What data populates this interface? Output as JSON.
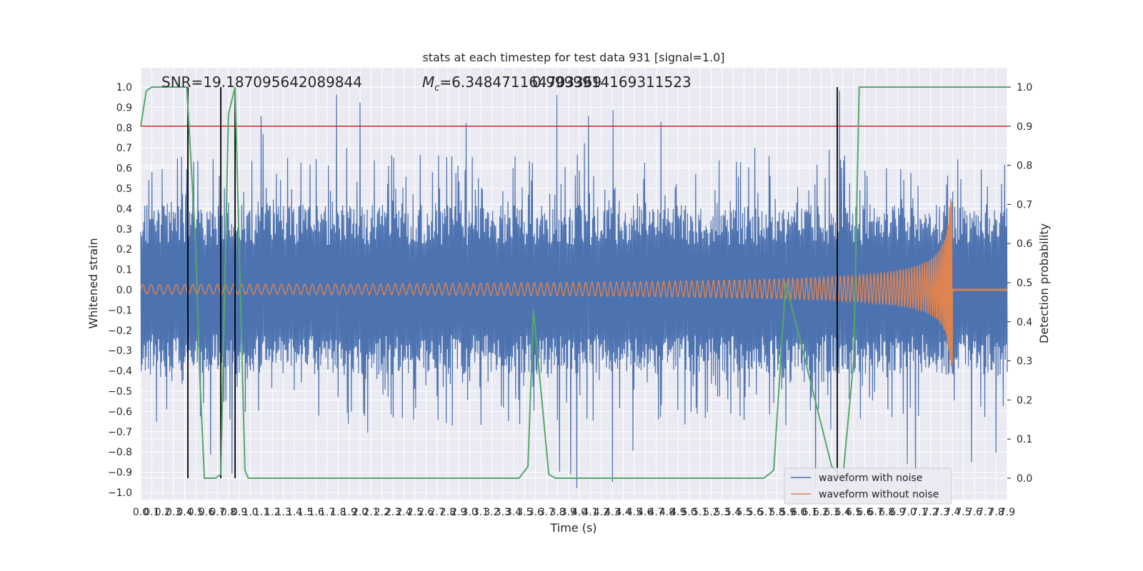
{
  "chart_data": {
    "type": "line",
    "title": "stats at each timestep for test data 931 [signal=1.0]",
    "xlabel": "Time (s)",
    "ylabel": "Whitened strain",
    "y2label": "Detection probability",
    "xlim": [
      0.0,
      7.9
    ],
    "ylim": [
      -1.0,
      1.0
    ],
    "y2lim": [
      0.0,
      1.0
    ],
    "grid": true,
    "legend_position": "bottom-right",
    "x_tick_labels": [
      "0.0",
      "0.1",
      "0.2",
      "0.3",
      "0.4",
      "0.5",
      "0.6",
      "0.7",
      "0.8",
      "0.9",
      "1.0",
      "1.1",
      "1.2",
      "1.3",
      "1.4",
      "1.5",
      "1.6",
      "1.7",
      "1.8",
      "1.9",
      "2.0",
      "2.1",
      "2.2",
      "2.3",
      "2.4",
      "2.5",
      "2.6",
      "2.7",
      "2.8",
      "2.9",
      "3.0",
      "3.1",
      "3.2",
      "3.3",
      "3.4",
      "3.5",
      "3.6",
      "3.7",
      "3.8",
      "3.9",
      "4.0",
      "4.1",
      "4.2",
      "4.3",
      "4.4",
      "4.5",
      "4.6",
      "4.7",
      "4.8",
      "4.9",
      "5.0",
      "5.1",
      "5.2",
      "5.3",
      "5.4",
      "5.5",
      "5.6",
      "5.7",
      "5.8",
      "5.9",
      "6.0",
      "6.1",
      "6.2",
      "6.3",
      "6.4",
      "6.5",
      "6.6",
      "6.7",
      "6.8",
      "6.9",
      "7.0",
      "7.1",
      "7.2",
      "7.3",
      "7.4",
      "7.5",
      "7.6",
      "7.7",
      "7.8",
      "7.9"
    ],
    "y_tick_labels": [
      "1.0",
      "0.9",
      "0.8",
      "0.7",
      "0.6",
      "0.5",
      "0.4",
      "0.3",
      "0.2",
      "0.1",
      "0.0",
      "−0.1",
      "−0.2",
      "−0.3",
      "−0.4",
      "−0.5",
      "−0.6",
      "−0.7",
      "−0.8",
      "−0.9",
      "−1.0"
    ],
    "y2_tick_labels": [
      "1.0",
      "0.9",
      "0.8",
      "0.7",
      "0.6",
      "0.5",
      "0.4",
      "0.3",
      "0.2",
      "0.1",
      "0.0"
    ],
    "annotations": {
      "snr": "SNR=19.187095642089844",
      "mc_symbol": "M",
      "mc_subscript": "c",
      "mc_value": "=6.348471164703369",
      "overlap_value": "0.9999914169311523"
    },
    "threshold_line": {
      "y2": 0.9,
      "color": "#c0392b"
    },
    "vertical_markers": [
      0.43,
      0.73,
      0.86,
      6.35
    ],
    "series": [
      {
        "name": "waveform with noise",
        "color": "#4c72b0",
        "envelope": {
          "core_abs": 0.42,
          "peak_abs": 1.0,
          "samples": 1700
        }
      },
      {
        "name": "waveform without noise",
        "color": "#dd8452",
        "chirp": {
          "start_amplitude": 0.025,
          "peak_amplitude_pos": 0.46,
          "peak_amplitude_neg": -0.38,
          "merger_time": 7.4
        }
      },
      {
        "name": "detection probability",
        "color": "#55a868",
        "axis": "y2",
        "x": [
          0.0,
          0.05,
          0.1,
          0.2,
          0.3,
          0.42,
          0.5,
          0.54,
          0.58,
          0.63,
          0.68,
          0.73,
          0.8,
          0.86,
          0.95,
          0.98,
          3.0,
          3.45,
          3.53,
          3.58,
          3.72,
          3.78,
          5.6,
          5.68,
          5.77,
          5.88,
          6.3,
          6.4,
          6.5,
          6.55,
          7.9
        ],
        "y": [
          0.9,
          0.99,
          1.0,
          1.0,
          1.0,
          1.0,
          0.6,
          0.25,
          0.0,
          0.0,
          0.0,
          0.01,
          0.93,
          1.0,
          0.02,
          0.0,
          0.0,
          0.0,
          0.03,
          0.43,
          0.01,
          0.0,
          0.0,
          0.0,
          0.02,
          0.5,
          0.03,
          0.0,
          0.3,
          1.0,
          1.0
        ]
      }
    ]
  }
}
